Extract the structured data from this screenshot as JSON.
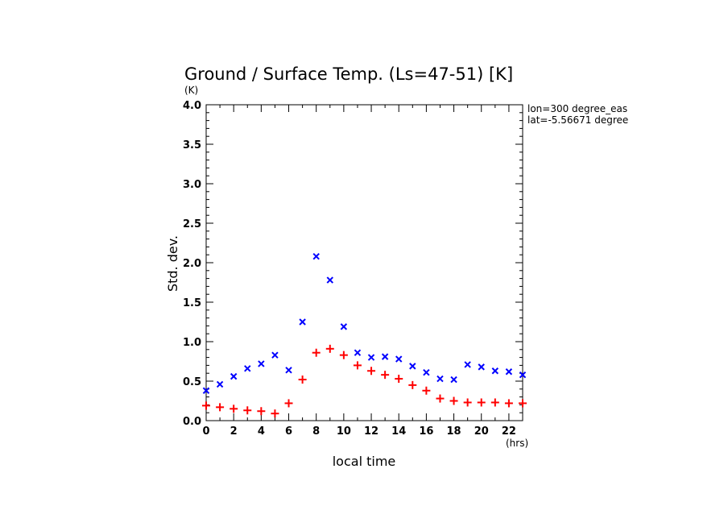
{
  "chart_data": {
    "type": "scatter",
    "title": "Ground / Surface Temp. (Ls=47-51) [K]",
    "xlabel": "local time",
    "xunit": "(hrs)",
    "ylabel": "Std. dev.",
    "yunit": "(K)",
    "xlim": [
      0,
      23
    ],
    "ylim": [
      0,
      4.0
    ],
    "xticks": [
      0,
      2,
      4,
      6,
      8,
      10,
      12,
      14,
      16,
      18,
      20,
      22
    ],
    "yticks": [
      0.0,
      0.5,
      1.0,
      1.5,
      2.0,
      2.5,
      3.0,
      3.5,
      4.0
    ],
    "annotations": [
      "lon=300 degree_eas",
      "lat=-5.56671 degree"
    ],
    "grid": false,
    "series": [
      {
        "marker": "x",
        "color": "#0000ff",
        "x": [
          0,
          1,
          2,
          3,
          4,
          5,
          6,
          7,
          8,
          9,
          10,
          11,
          12,
          13,
          14,
          15,
          16,
          17,
          18,
          19,
          20,
          21,
          22,
          23
        ],
        "y": [
          0.38,
          0.46,
          0.56,
          0.66,
          0.72,
          0.83,
          0.64,
          1.25,
          2.08,
          1.78,
          1.19,
          0.86,
          0.8,
          0.81,
          0.78,
          0.69,
          0.61,
          0.53,
          0.52,
          0.71,
          0.68,
          0.63,
          0.62,
          0.58
        ]
      },
      {
        "marker": "+",
        "color": "#ff0000",
        "x": [
          0,
          1,
          2,
          3,
          4,
          5,
          6,
          7,
          8,
          9,
          10,
          11,
          12,
          13,
          14,
          15,
          16,
          17,
          18,
          19,
          20,
          21,
          22,
          23
        ],
        "y": [
          0.19,
          0.17,
          0.15,
          0.13,
          0.12,
          0.09,
          0.22,
          0.52,
          0.86,
          0.91,
          0.83,
          0.7,
          0.63,
          0.58,
          0.53,
          0.45,
          0.38,
          0.28,
          0.25,
          0.23,
          0.23,
          0.23,
          0.22,
          0.22
        ]
      }
    ]
  }
}
